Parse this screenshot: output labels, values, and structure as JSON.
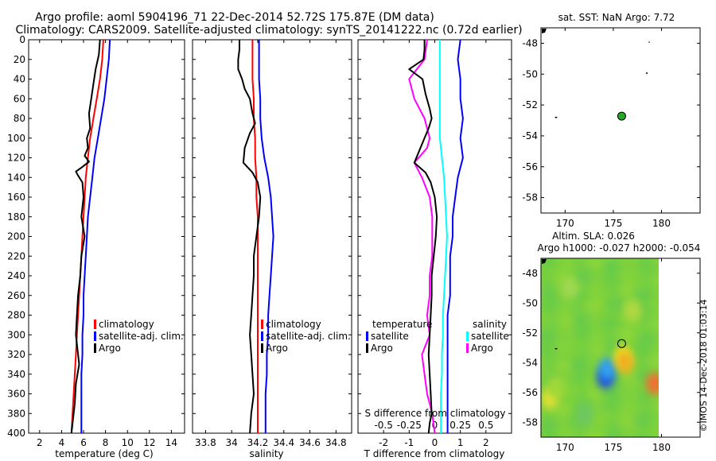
{
  "header": {
    "title_line1": "Argo profile: aoml 5904196_71 22-Dec-2014 52.72S 175.87E (DM data)",
    "title_line2": "Climatology: CARS2009. Satellite-adjusted climatology: synTS_20141222.nc (0.72d earlier)"
  },
  "colors": {
    "climatology": "#ff0000",
    "satellite": "#0000ff",
    "argo": "#000000",
    "argo_diff": "#ff00ff",
    "sal_satellite": "#00ffff",
    "map_point": "#22aa22"
  },
  "chart_data": [
    {
      "id": "temperature",
      "type": "line",
      "xlabel": "temperature (deg C)",
      "ylabel": "",
      "xlim": [
        1,
        15.2
      ],
      "ylim": [
        400,
        0
      ],
      "xticks": [
        "2",
        "4",
        "6",
        "8",
        "10",
        "12",
        "14"
      ],
      "xtick_values": [
        2,
        4,
        6,
        8,
        10,
        12,
        14
      ],
      "yticks": [
        "0",
        "20",
        "40",
        "60",
        "80",
        "100",
        "120",
        "140",
        "160",
        "180",
        "200",
        "220",
        "240",
        "260",
        "280",
        "300",
        "320",
        "340",
        "360",
        "380",
        "400"
      ],
      "legend": [
        "climatology",
        "satellite-adj. clim.",
        "Argo"
      ],
      "series": [
        {
          "name": "climatology",
          "color": "#ff0000",
          "x": [
            7.8,
            7.7,
            7.5,
            7.2,
            6.9,
            6.6,
            6.4,
            6.2,
            6.1,
            6.0,
            5.9,
            5.8,
            5.7,
            5.6,
            5.5,
            5.4,
            5.3,
            5.2,
            5.1,
            5.0,
            4.9
          ],
          "y": [
            0,
            20,
            40,
            60,
            80,
            100,
            120,
            140,
            160,
            180,
            200,
            220,
            240,
            260,
            280,
            300,
            320,
            340,
            360,
            380,
            400
          ]
        },
        {
          "name": "satellite-adj. clim.",
          "color": "#0000ff",
          "x": [
            8.4,
            8.3,
            8.1,
            7.9,
            7.6,
            7.3,
            7.0,
            6.8,
            6.6,
            6.4,
            6.3,
            6.2,
            6.1,
            6.0,
            6.0,
            5.9,
            5.9,
            5.8,
            5.8,
            5.8,
            5.8
          ],
          "y": [
            0,
            20,
            40,
            60,
            80,
            100,
            120,
            140,
            160,
            180,
            200,
            220,
            240,
            260,
            280,
            300,
            320,
            340,
            360,
            380,
            400
          ]
        },
        {
          "name": "Argo",
          "color": "#000000",
          "x": [
            7.5,
            7.4,
            7.1,
            6.9,
            6.7,
            6.5,
            6.6,
            6.3,
            6.4,
            6.1,
            6.5,
            5.8,
            5.3,
            5.5,
            5.9,
            6.0,
            5.8,
            6.1,
            5.8,
            5.7,
            5.5,
            5.4,
            5.3,
            5.6,
            5.3,
            5.2,
            5.0,
            4.9
          ],
          "y": [
            0,
            15,
            30,
            45,
            60,
            75,
            90,
            100,
            110,
            118,
            124,
            130,
            134,
            138,
            145,
            160,
            180,
            200,
            220,
            240,
            260,
            280,
            300,
            330,
            350,
            370,
            390,
            400
          ]
        }
      ]
    },
    {
      "id": "salinity",
      "type": "line",
      "xlabel": "salinity",
      "ylabel": "",
      "xlim": [
        33.7,
        34.92
      ],
      "ylim": [
        400,
        0
      ],
      "xticks": [
        "33.8",
        "34",
        "34.2",
        "34.4",
        "34.6",
        "34.8"
      ],
      "xtick_values": [
        33.8,
        34.0,
        34.2,
        34.4,
        34.6,
        34.8
      ],
      "legend": [
        "climatology",
        "satellite-adj. clim.",
        "Argo"
      ],
      "series": [
        {
          "name": "climatology",
          "color": "#ff0000",
          "x": [
            34.16,
            34.16,
            34.16,
            34.17,
            34.17,
            34.18,
            34.18,
            34.19,
            34.19,
            34.2,
            34.2,
            34.2,
            34.2,
            34.2,
            34.2,
            34.2,
            34.2,
            34.2,
            34.2,
            34.2,
            34.2
          ],
          "y": [
            0,
            20,
            40,
            60,
            80,
            100,
            120,
            140,
            160,
            180,
            200,
            220,
            240,
            260,
            280,
            300,
            320,
            340,
            360,
            380,
            400
          ]
        },
        {
          "name": "satellite-adj. clim.",
          "color": "#0000ff",
          "x": [
            34.21,
            34.21,
            34.21,
            34.22,
            34.22,
            34.23,
            34.25,
            34.28,
            34.3,
            34.31,
            34.32,
            34.31,
            34.3,
            34.29,
            34.28,
            34.28,
            34.27,
            34.27,
            34.26,
            34.26,
            34.26
          ],
          "y": [
            0,
            20,
            40,
            60,
            80,
            100,
            120,
            140,
            160,
            180,
            200,
            220,
            240,
            260,
            280,
            300,
            320,
            340,
            360,
            380,
            400
          ]
        },
        {
          "name": "Argo",
          "color": "#000000",
          "x": [
            34.06,
            34.06,
            34.05,
            34.05,
            34.08,
            34.1,
            34.14,
            34.16,
            34.18,
            34.14,
            34.1,
            34.09,
            34.16,
            34.2,
            34.22,
            34.21,
            34.19,
            34.17,
            34.17,
            34.16,
            34.15,
            34.14,
            34.15,
            34.16,
            34.17,
            34.15,
            34.14
          ],
          "y": [
            0,
            10,
            20,
            30,
            40,
            50,
            60,
            75,
            85,
            95,
            110,
            125,
            135,
            145,
            160,
            180,
            200,
            220,
            240,
            260,
            280,
            300,
            320,
            340,
            360,
            380,
            400
          ]
        }
      ]
    },
    {
      "id": "differences",
      "type": "line",
      "xlabel": "T difference from climatology",
      "top_label": "S difference from climatology",
      "xlim": [
        -3,
        3
      ],
      "ylim": [
        400,
        0
      ],
      "xticks": [
        "-2",
        "-1",
        "0",
        "1",
        "2"
      ],
      "xtick_values": [
        -2,
        -1,
        0,
        1,
        2
      ],
      "s_ticks": [
        "-0.5",
        "-0.25",
        "0",
        "0.25",
        "0.5"
      ],
      "s_tick_values": [
        -0.5,
        -0.25,
        0,
        0.25,
        0.5
      ],
      "legend": {
        "temperature_title": "temperature",
        "salinity_title": "salinity",
        "satellite": "satellite",
        "argo": "Argo"
      },
      "series": [
        {
          "name": "T satellite",
          "color": "#0000ff",
          "x": [
            1.0,
            0.9,
            1.0,
            1.0,
            1.1,
            1.0,
            1.1,
            0.9,
            0.8,
            0.7,
            0.7,
            0.6,
            0.6,
            0.6,
            0.5,
            0.5,
            0.5,
            0.5,
            0.5,
            0.5,
            0.5
          ],
          "y": [
            0,
            20,
            40,
            60,
            80,
            100,
            120,
            140,
            160,
            180,
            200,
            220,
            240,
            260,
            280,
            300,
            320,
            340,
            360,
            380,
            400
          ]
        },
        {
          "name": "T Argo",
          "color": "#ff00ff",
          "x": [
            -0.3,
            -0.4,
            -1.0,
            -0.8,
            -0.4,
            -0.2,
            -0.3,
            -0.8,
            -0.5,
            -0.2,
            -0.1,
            -0.1,
            -0.1,
            -0.2,
            -0.2,
            -0.3,
            -0.2,
            -0.5,
            -0.4,
            -0.3,
            -0.1,
            0.0
          ],
          "y": [
            0,
            20,
            40,
            60,
            80,
            100,
            110,
            125,
            140,
            160,
            180,
            200,
            220,
            240,
            260,
            280,
            300,
            320,
            340,
            360,
            380,
            400
          ]
        },
        {
          "name": "S satellite",
          "color": "#00ffff",
          "x": [
            0.05,
            0.05,
            0.05,
            0.05,
            0.05,
            0.05,
            0.07,
            0.09,
            0.1,
            0.11,
            0.12,
            0.11,
            0.1,
            0.09,
            0.08,
            0.08,
            0.07,
            0.07,
            0.06,
            0.06,
            0.06
          ],
          "y": [
            0,
            20,
            40,
            60,
            80,
            100,
            120,
            140,
            160,
            180,
            200,
            220,
            240,
            260,
            280,
            300,
            320,
            340,
            360,
            380,
            400
          ]
        },
        {
          "name": "S Argo",
          "color": "#000000",
          "x": [
            -0.1,
            -0.1,
            -0.11,
            -0.25,
            -0.12,
            -0.09,
            -0.05,
            -0.03,
            -0.06,
            -0.1,
            -0.2,
            -0.09,
            -0.04,
            0.0,
            0.02,
            0.01,
            -0.01,
            -0.03,
            -0.03,
            -0.04,
            -0.05,
            -0.06,
            -0.05,
            -0.04,
            -0.03,
            -0.05,
            -0.06
          ],
          "y": [
            0,
            10,
            20,
            30,
            40,
            55,
            70,
            80,
            90,
            100,
            125,
            135,
            145,
            160,
            180,
            200,
            220,
            240,
            260,
            280,
            300,
            320,
            340,
            360,
            380,
            390,
            400
          ]
        }
      ]
    },
    {
      "id": "sst_map",
      "type": "scatter",
      "title": "sat. SST: NaN Argo: 7.72",
      "xlim": [
        167.5,
        184
      ],
      "ylim": [
        -59,
        -47
      ],
      "xticks": [
        "170",
        "175",
        "180"
      ],
      "xtick_values": [
        170,
        175,
        180
      ],
      "yticks": [
        "-48",
        "-50",
        "-52",
        "-54",
        "-56",
        "-58"
      ],
      "ytick_values": [
        -48,
        -50,
        -52,
        -54,
        -56,
        -58
      ],
      "points": [
        {
          "lon": 175.87,
          "lat": -52.72,
          "label": "Argo"
        }
      ]
    },
    {
      "id": "sla_map",
      "type": "heatmap",
      "title_line1": "Altim. SLA: 0.026",
      "title_line2": "Argo h1000: -0.027 h2000: -0.054",
      "xlim": [
        167.5,
        184
      ],
      "ylim": [
        -59,
        -47
      ],
      "xticks": [
        "170",
        "175",
        "180"
      ],
      "xtick_values": [
        170,
        175,
        180
      ],
      "yticks": [
        "-48",
        "-50",
        "-52",
        "-54",
        "-56",
        "-58"
      ],
      "ytick_values": [
        -48,
        -50,
        -52,
        -54,
        -56,
        -58
      ],
      "points": [
        {
          "lon": 175.87,
          "lat": -52.72,
          "label": "Argo"
        }
      ],
      "blobs": [
        {
          "lon": 174.2,
          "lat": -55.0,
          "color": "#1e50e0"
        },
        {
          "lon": 174.4,
          "lat": -54.4,
          "color": "#30a0f0"
        },
        {
          "lon": 176.0,
          "lat": -53.6,
          "color": "#f0e020"
        },
        {
          "lon": 176.2,
          "lat": -54.0,
          "color": "#f0b020"
        },
        {
          "lon": 179.3,
          "lat": -55.4,
          "color": "#f07030"
        },
        {
          "lon": 168.4,
          "lat": -56.4,
          "color": "#e0e030"
        },
        {
          "lon": 169.0,
          "lat": -55.6,
          "color": "#a0d838"
        },
        {
          "lon": 170.5,
          "lat": -49.0,
          "color": "#a0d850"
        },
        {
          "lon": 177.0,
          "lat": -50.5,
          "color": "#b0d840"
        },
        {
          "lon": 172.0,
          "lat": -57.5,
          "color": "#70c860"
        }
      ]
    }
  ],
  "watermark": "©IMOS 14-Dec-2018 01:03:14"
}
